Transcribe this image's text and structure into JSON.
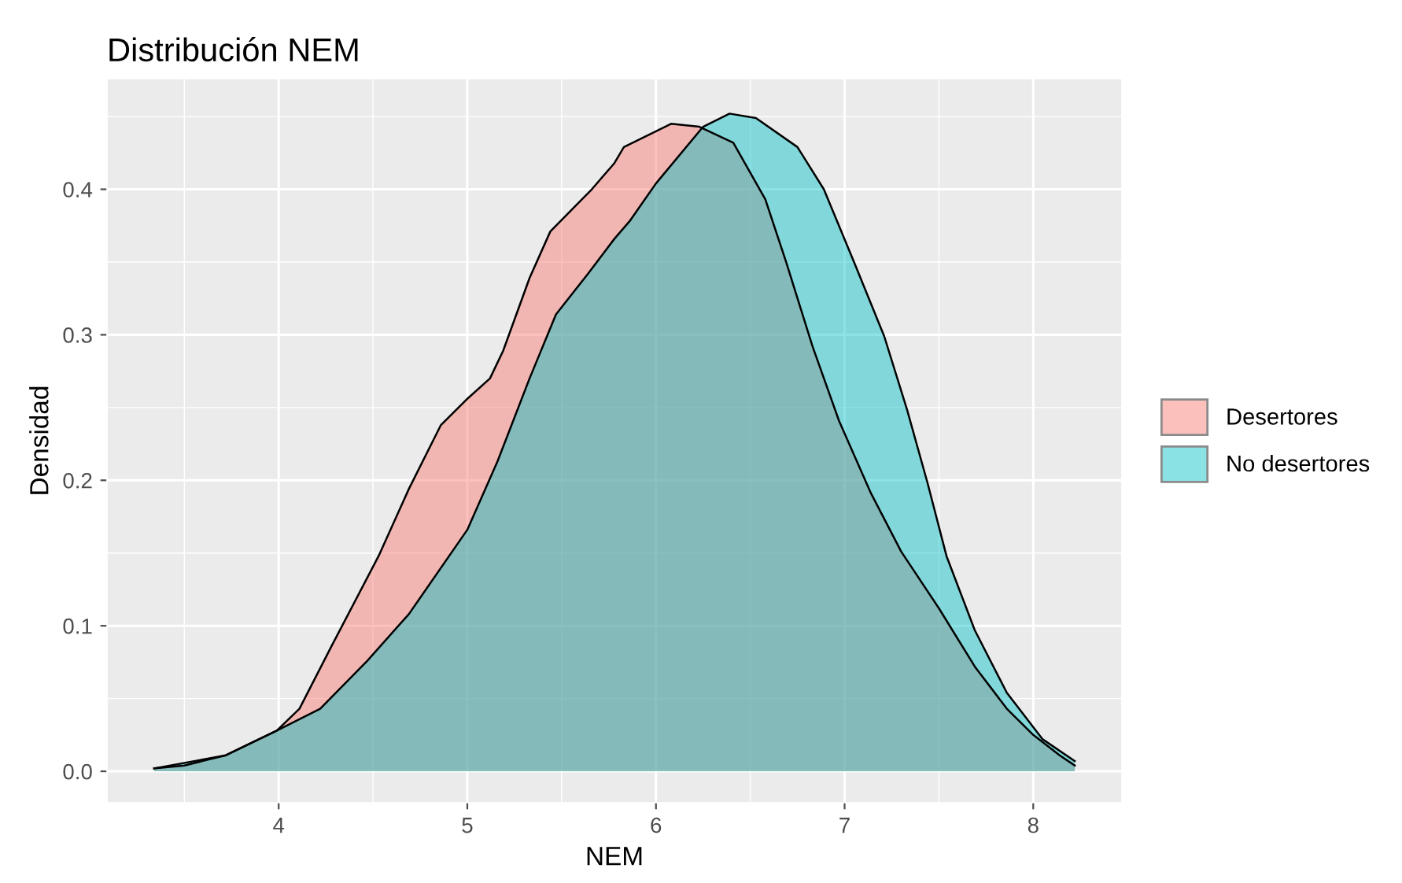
{
  "chart_data": {
    "type": "area",
    "title": "Distribución NEM",
    "xlabel": "NEM",
    "ylabel": "Densidad",
    "xlim": [
      3.09,
      8.47
    ],
    "ylim": [
      -0.0216,
      0.476
    ],
    "xticks": [
      4,
      5,
      6,
      7,
      8
    ],
    "yticks": [
      {
        "value": 0,
        "label": "0.0"
      },
      {
        "value": 0.1,
        "label": "0.1"
      },
      {
        "value": 0.2,
        "label": "0.2"
      },
      {
        "value": 0.3,
        "label": "0.3"
      },
      {
        "value": 0.4,
        "label": "0.4"
      }
    ],
    "grid": true,
    "legend": "right",
    "series": [
      {
        "name": "Desertores",
        "color": "#f8766d",
        "x": [
          3.34,
          3.5,
          3.72,
          3.99,
          4.11,
          4.28,
          4.53,
          4.69,
          4.86,
          5.0,
          5.12,
          5.19,
          5.33,
          5.44,
          5.66,
          5.78,
          5.83,
          6.08,
          6.23,
          6.41,
          6.58,
          6.69,
          6.83,
          6.97,
          7.14,
          7.3,
          7.5,
          7.69,
          7.86,
          8.0,
          8.14,
          8.22
        ],
        "values": [
          0.002,
          0.004,
          0.011,
          0.028,
          0.043,
          0.086,
          0.148,
          0.194,
          0.238,
          0.256,
          0.27,
          0.289,
          0.339,
          0.371,
          0.4,
          0.418,
          0.429,
          0.445,
          0.443,
          0.432,
          0.393,
          0.35,
          0.292,
          0.241,
          0.191,
          0.151,
          0.112,
          0.072,
          0.043,
          0.025,
          0.011,
          0.004
        ]
      },
      {
        "name": "No desertores",
        "color": "#00bfc4",
        "x": [
          3.34,
          3.72,
          3.99,
          4.22,
          4.47,
          4.69,
          5.0,
          5.16,
          5.33,
          5.47,
          5.64,
          5.78,
          5.86,
          6.0,
          6.25,
          6.39,
          6.53,
          6.75,
          6.89,
          7.05,
          7.21,
          7.33,
          7.44,
          7.54,
          7.69,
          7.86,
          8.05,
          8.22
        ],
        "values": [
          0.002,
          0.011,
          0.028,
          0.043,
          0.076,
          0.108,
          0.166,
          0.213,
          0.27,
          0.314,
          0.342,
          0.366,
          0.378,
          0.404,
          0.443,
          0.452,
          0.449,
          0.429,
          0.4,
          0.35,
          0.299,
          0.249,
          0.198,
          0.148,
          0.097,
          0.054,
          0.022,
          0.007
        ]
      }
    ]
  }
}
